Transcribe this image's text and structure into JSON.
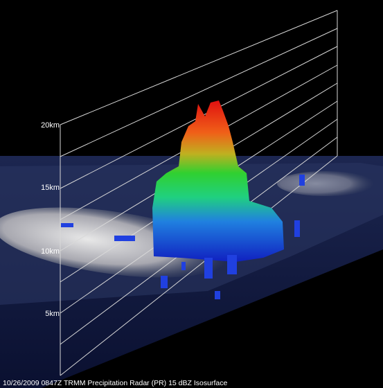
{
  "height_labels": [
    "20km",
    "15km",
    "10km",
    "5km"
  ],
  "caption": "10/26/2009 0847Z  TRMM Precipitation Radar (PR) 15 dBZ Isosurface"
}
